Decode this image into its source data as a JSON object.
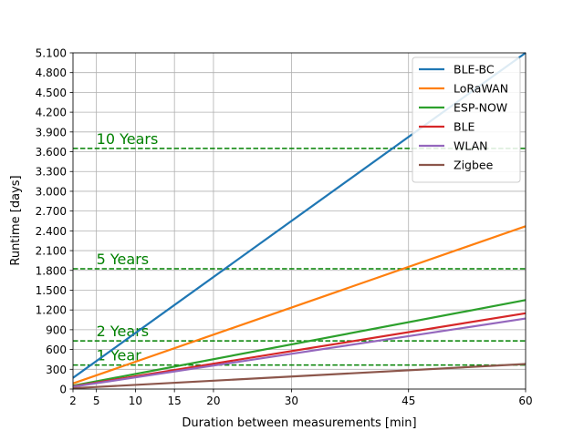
{
  "chart_data": {
    "type": "line",
    "title": "",
    "xlabel": "Duration between measurements [min]",
    "ylabel": "Runtime [days]",
    "xlim": [
      2,
      60
    ],
    "ylim": [
      0,
      5100
    ],
    "xticks": [
      2,
      5,
      10,
      15,
      20,
      30,
      45,
      60
    ],
    "yticks": [
      0,
      300,
      600,
      900,
      1200,
      1500,
      1800,
      2100,
      2400,
      2700,
      3000,
      3300,
      3600,
      3900,
      4200,
      4500,
      4800,
      5100
    ],
    "ytick_labels": [
      "0",
      "300",
      "600",
      "900",
      "1.200",
      "1.500",
      "1.800",
      "2.100",
      "2.400",
      "2.700",
      "3.000",
      "3.300",
      "3.600",
      "3.900",
      "4.200",
      "4.500",
      "4.800",
      "5.100"
    ],
    "grid": true,
    "legend_position": "top-right",
    "series": [
      {
        "name": "BLE-BC",
        "color": "#1f77b4",
        "x": [
          2,
          60
        ],
        "y": [
          170,
          5100
        ]
      },
      {
        "name": "LoRaWAN",
        "color": "#ff7f0e",
        "x": [
          2,
          60
        ],
        "y": [
          85,
          2470
        ]
      },
      {
        "name": "ESP-NOW",
        "color": "#2ca02c",
        "x": [
          2,
          60
        ],
        "y": [
          50,
          1350
        ]
      },
      {
        "name": "BLE",
        "color": "#d62728",
        "x": [
          2,
          60
        ],
        "y": [
          40,
          1150
        ]
      },
      {
        "name": "WLAN",
        "color": "#9467bd",
        "x": [
          2,
          60
        ],
        "y": [
          35,
          1070
        ]
      },
      {
        "name": "Zigbee",
        "color": "#8c564b",
        "x": [
          2,
          60
        ],
        "y": [
          13,
          380
        ]
      }
    ],
    "reference_lines": [
      {
        "label": "1 Year",
        "y": 365,
        "color": "#008000"
      },
      {
        "label": "2 Years",
        "y": 730,
        "color": "#008000"
      },
      {
        "label": "5 Years",
        "y": 1825,
        "color": "#008000"
      },
      {
        "label": "10 Years",
        "y": 3650,
        "color": "#008000"
      }
    ]
  }
}
